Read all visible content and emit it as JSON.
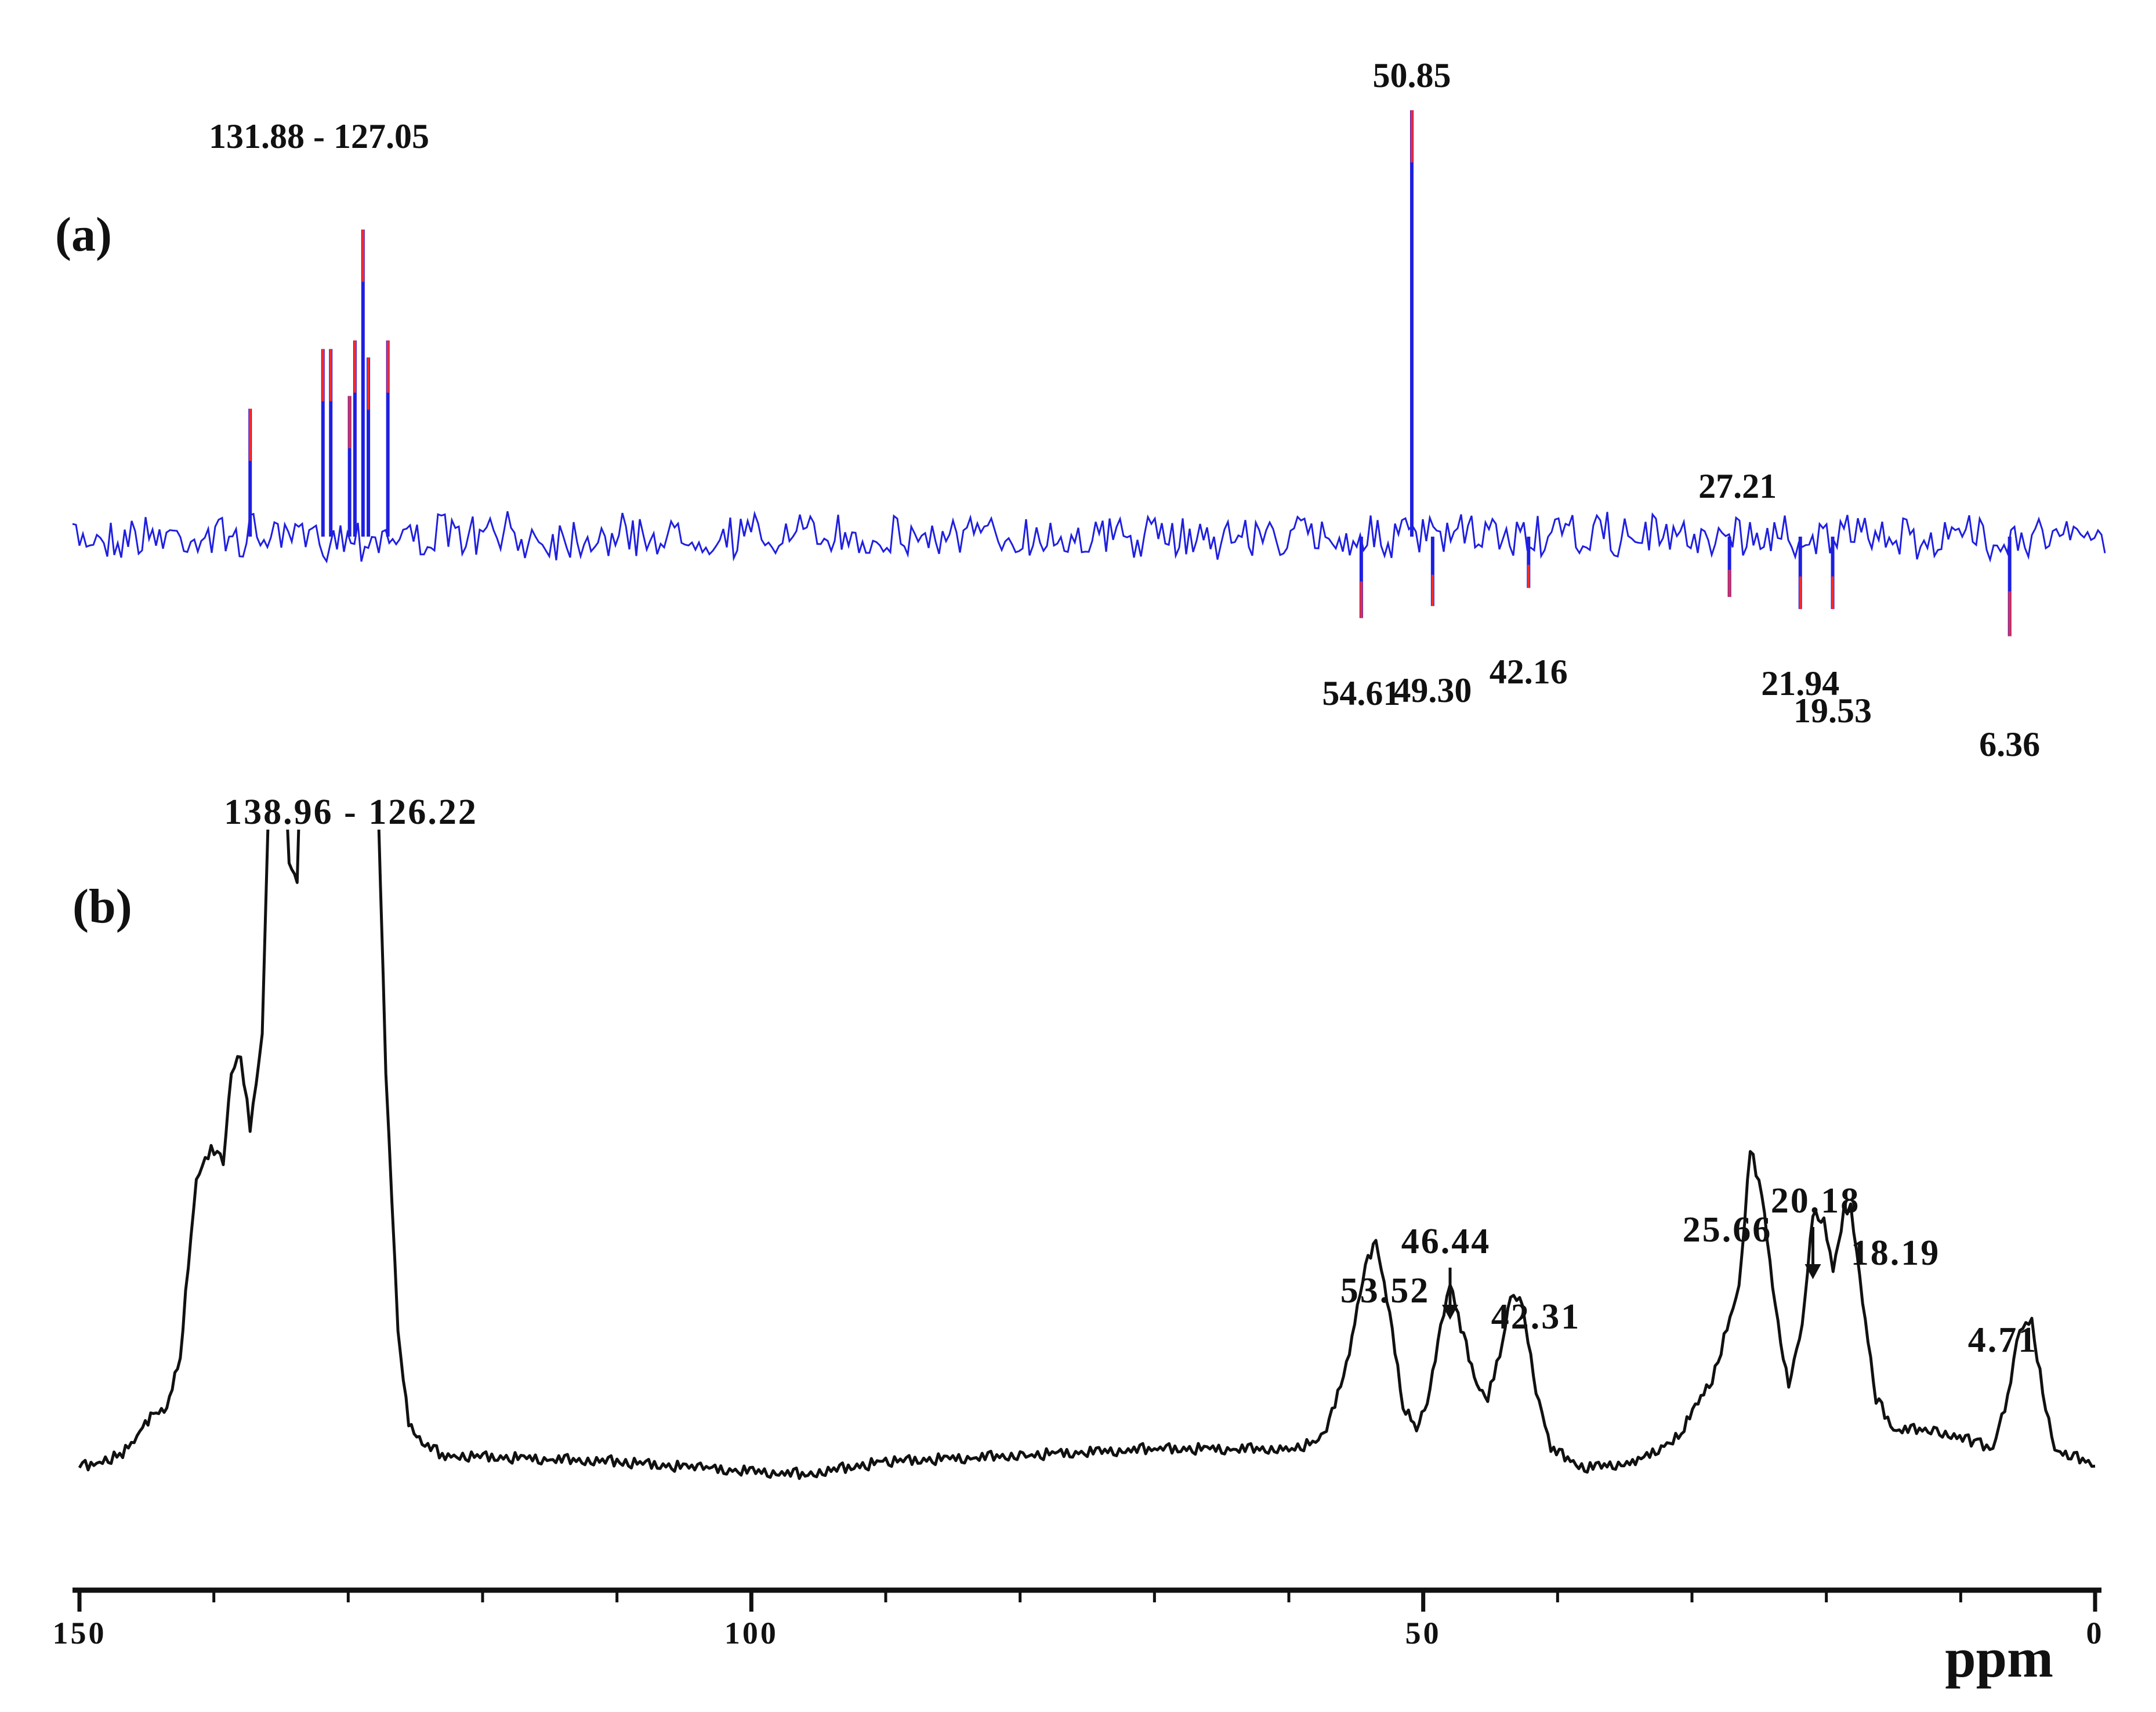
{
  "chart_data": [
    {
      "type": "line",
      "panel_label": "(a)",
      "description_kind": "DEPT-135 13C NMR spectrum (positive and negative peaks)",
      "x_unit": "ppm",
      "x_axis_reversed": true,
      "colors": {
        "trace": "#1f1fe0",
        "peak_marker": "#ff2a2a"
      },
      "group_label": "131.88 - 127.05",
      "peaks": [
        {
          "ppm": 137.3,
          "height": 0.3,
          "labeled": false
        },
        {
          "ppm": 131.88,
          "height": 0.44,
          "labeled": false
        },
        {
          "ppm": 131.3,
          "height": 0.44,
          "labeled": false
        },
        {
          "ppm": 129.9,
          "height": 0.33,
          "labeled": false
        },
        {
          "ppm": 129.5,
          "height": 0.46,
          "labeled": false
        },
        {
          "ppm": 128.9,
          "height": 0.72,
          "labeled": false
        },
        {
          "ppm": 128.5,
          "height": 0.42,
          "labeled": false
        },
        {
          "ppm": 127.05,
          "height": 0.46,
          "labeled": false
        },
        {
          "ppm": 50.85,
          "height": 1.0,
          "label": "50.85"
        },
        {
          "ppm": 54.61,
          "height": -0.27,
          "label": "54.61"
        },
        {
          "ppm": 49.3,
          "height": -0.23,
          "label": "49.30"
        },
        {
          "ppm": 42.16,
          "height": -0.17,
          "label": "42.16"
        },
        {
          "ppm": 27.21,
          "height": -0.2,
          "label": "27.21"
        },
        {
          "ppm": 21.94,
          "height": -0.24,
          "label": "21.94"
        },
        {
          "ppm": 19.53,
          "height": -0.24,
          "label": "19.53"
        },
        {
          "ppm": 6.36,
          "height": -0.33,
          "label": "6.36"
        }
      ]
    },
    {
      "type": "line",
      "panel_label": "(b)",
      "description_kind": "solid-state CP/MAS 13C NMR spectrum",
      "x_unit": "ppm",
      "x_axis_reversed": true,
      "colors": {
        "trace": "#111111"
      },
      "group_label": "138.96 - 126.22",
      "curve": [
        [
          150.0,
          0.0
        ],
        [
          147.0,
          0.02
        ],
        [
          145.5,
          0.05
        ],
        [
          144.5,
          0.09
        ],
        [
          143.5,
          0.09
        ],
        [
          142.5,
          0.18
        ],
        [
          141.3,
          0.45
        ],
        [
          140.2,
          0.5
        ],
        [
          139.3,
          0.48
        ],
        [
          138.7,
          0.62
        ],
        [
          138.0,
          0.65
        ],
        [
          137.3,
          0.53
        ],
        [
          136.4,
          0.68
        ],
        [
          135.7,
          1.22
        ],
        [
          135.0,
          1.22
        ],
        [
          134.4,
          0.95
        ],
        [
          133.8,
          0.92
        ],
        [
          133.4,
          1.22
        ],
        [
          128.0,
          1.22
        ],
        [
          127.2,
          0.62
        ],
        [
          126.3,
          0.22
        ],
        [
          125.5,
          0.07
        ],
        [
          124.5,
          0.04
        ],
        [
          123.0,
          0.02
        ],
        [
          110.0,
          0.01
        ],
        [
          104.0,
          0.0
        ],
        [
          96.0,
          -0.01
        ],
        [
          90.0,
          0.01
        ],
        [
          80.0,
          0.02
        ],
        [
          70.0,
          0.03
        ],
        [
          60.0,
          0.03
        ],
        [
          58.0,
          0.04
        ],
        [
          57.0,
          0.07
        ],
        [
          55.5,
          0.18
        ],
        [
          54.5,
          0.3
        ],
        [
          53.52,
          0.36
        ],
        [
          52.5,
          0.24
        ],
        [
          51.5,
          0.1
        ],
        [
          50.5,
          0.06
        ],
        [
          49.5,
          0.12
        ],
        [
          48.7,
          0.22
        ],
        [
          48.0,
          0.29
        ],
        [
          47.2,
          0.22
        ],
        [
          46.0,
          0.13
        ],
        [
          45.2,
          0.11
        ],
        [
          44.3,
          0.18
        ],
        [
          43.5,
          0.27
        ],
        [
          42.6,
          0.26
        ],
        [
          41.6,
          0.12
        ],
        [
          40.5,
          0.03
        ],
        [
          38.0,
          0.0
        ],
        [
          34.0,
          0.01
        ],
        [
          31.0,
          0.05
        ],
        [
          28.5,
          0.14
        ],
        [
          26.5,
          0.28
        ],
        [
          25.66,
          0.5
        ],
        [
          24.8,
          0.43
        ],
        [
          23.8,
          0.25
        ],
        [
          22.8,
          0.13
        ],
        [
          21.8,
          0.22
        ],
        [
          21.0,
          0.4
        ],
        [
          20.18,
          0.39
        ],
        [
          19.5,
          0.31
        ],
        [
          18.7,
          0.4
        ],
        [
          18.19,
          0.41
        ],
        [
          17.3,
          0.26
        ],
        [
          16.3,
          0.11
        ],
        [
          15.0,
          0.06
        ],
        [
          12.0,
          0.06
        ],
        [
          9.0,
          0.04
        ],
        [
          7.6,
          0.03
        ],
        [
          6.5,
          0.11
        ],
        [
          5.6,
          0.22
        ],
        [
          4.71,
          0.23
        ],
        [
          3.9,
          0.12
        ],
        [
          3.0,
          0.03
        ],
        [
          2.0,
          0.02
        ],
        [
          0.5,
          0.01
        ],
        [
          0.0,
          0.0
        ]
      ],
      "peak_labels": [
        {
          "ppm": 53.52,
          "label": "53.52",
          "arrow": false
        },
        {
          "ppm": 48.0,
          "label": "46.44",
          "arrow": true
        },
        {
          "ppm": 42.31,
          "label": "42.31",
          "arrow": false
        },
        {
          "ppm": 25.66,
          "label": "25.66",
          "arrow": false
        },
        {
          "ppm": 21.0,
          "label": "20.18",
          "arrow": true
        },
        {
          "ppm": 18.19,
          "label": "18.19",
          "arrow": false
        },
        {
          "ppm": 4.71,
          "label": "4.71",
          "arrow": false
        }
      ]
    }
  ],
  "x_axis": {
    "label": "ppm",
    "range": [
      150,
      0
    ],
    "reversed": true,
    "major_ticks": [
      150,
      100,
      50,
      0
    ],
    "tick_labels": [
      "150",
      "100",
      "50",
      "0"
    ],
    "minor_ticks": [
      140,
      130,
      120,
      110,
      90,
      80,
      70,
      60,
      40,
      30,
      20,
      10
    ]
  }
}
